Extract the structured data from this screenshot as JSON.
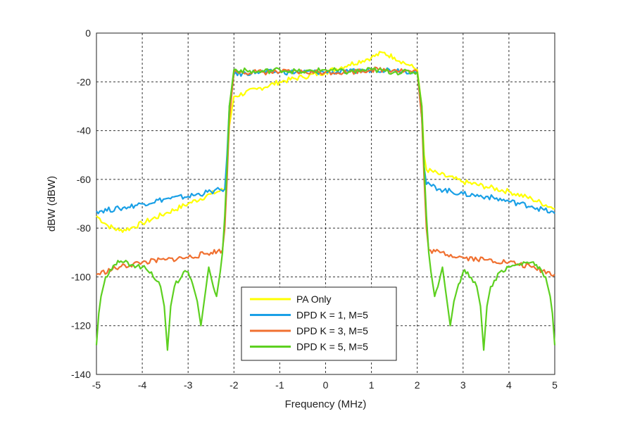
{
  "chart_data": {
    "type": "line",
    "title": "",
    "xlabel": "Frequency (MHz)",
    "ylabel": "dBW (dBW)",
    "xlim": [
      -5,
      5
    ],
    "ylim": [
      -140,
      0
    ],
    "xticks": [
      "-5",
      "-4",
      "-3",
      "-2",
      "-1",
      "0",
      "1",
      "2",
      "3",
      "4",
      "5"
    ],
    "yticks": [
      "0",
      "-20",
      "-40",
      "-60",
      "-80",
      "-100",
      "-120",
      "-140"
    ],
    "grid": true,
    "legend_position": "bottom-center",
    "series": [
      {
        "name": "PA Only",
        "color": "#ffff00",
        "x": [
          -5,
          -4.75,
          -4.5,
          -4.25,
          -4,
          -3.5,
          -3,
          -2.5,
          -2.2,
          -2.15,
          -2.1,
          -2.0,
          -1.5,
          -1.0,
          -0.5,
          0,
          0.5,
          1.0,
          1.25,
          1.5,
          1.8,
          2.0,
          2.1,
          2.15,
          2.2,
          2.5,
          3.0,
          3.5,
          4.0,
          4.5,
          5.0
        ],
        "y": [
          -75,
          -79,
          -81,
          -80,
          -78,
          -74,
          -70,
          -66,
          -64,
          -55,
          -38,
          -26,
          -23,
          -20,
          -18,
          -16,
          -13,
          -10,
          -8,
          -10,
          -13,
          -15,
          -30,
          -50,
          -56,
          -58,
          -61,
          -63,
          -65,
          -68,
          -72
        ]
      },
      {
        "name": "DPD K = 1, M=5",
        "color": "#1aa0e6",
        "x": [
          -5,
          -4.5,
          -4,
          -3.5,
          -3,
          -2.5,
          -2.2,
          -2.15,
          -2.1,
          -2.0,
          -1.5,
          -1.0,
          -0.5,
          0,
          0.5,
          1.0,
          1.5,
          2.0,
          2.1,
          2.15,
          2.2,
          2.5,
          3.0,
          3.5,
          4.0,
          4.5,
          5.0
        ],
        "y": [
          -73,
          -72,
          -70,
          -68,
          -67,
          -65,
          -64,
          -50,
          -30,
          -17,
          -16,
          -16,
          -16,
          -16,
          -16,
          -15,
          -15,
          -16,
          -35,
          -55,
          -62,
          -64,
          -66,
          -67,
          -69,
          -71,
          -74
        ]
      },
      {
        "name": "DPD K = 3, M=5",
        "color": "#f07030",
        "x": [
          -5,
          -4.5,
          -4,
          -3.5,
          -3,
          -2.5,
          -2.25,
          -2.2,
          -2.15,
          -2.1,
          -2.0,
          -1.5,
          -1.0,
          -0.5,
          0,
          0.5,
          1.0,
          1.5,
          2.0,
          2.1,
          2.15,
          2.2,
          2.25,
          2.5,
          3.0,
          3.5,
          4.0,
          4.5,
          5.0
        ],
        "y": [
          -99,
          -96,
          -94,
          -93,
          -92,
          -90,
          -89,
          -80,
          -60,
          -35,
          -16,
          -16,
          -16,
          -16,
          -16,
          -16,
          -15,
          -15,
          -16,
          -35,
          -60,
          -80,
          -89,
          -90,
          -92,
          -93,
          -94,
          -96,
          -99
        ]
      },
      {
        "name": "DPD K = 5, M=5",
        "color": "#5dd020",
        "x": [
          -5,
          -4.95,
          -4.9,
          -4.8,
          -4.7,
          -4.6,
          -4.5,
          -4.4,
          -4.2,
          -4.0,
          -3.8,
          -3.6,
          -3.52,
          -3.45,
          -3.38,
          -3.3,
          -3.1,
          -3.0,
          -2.9,
          -2.8,
          -2.72,
          -2.65,
          -2.55,
          -2.45,
          -2.38,
          -2.3,
          -2.25,
          -2.2,
          -2.15,
          -2.1,
          -2.0,
          -1.5,
          -1.0,
          -0.5,
          0,
          0.5,
          1.0,
          1.5,
          2.0,
          2.1,
          2.15,
          2.2,
          2.25,
          2.3,
          2.38,
          2.45,
          2.55,
          2.65,
          2.72,
          2.8,
          2.9,
          3.0,
          3.1,
          3.3,
          3.38,
          3.45,
          3.52,
          3.6,
          3.8,
          4.0,
          4.2,
          4.4,
          4.5,
          4.6,
          4.7,
          4.8,
          4.9,
          4.95,
          5.0
        ],
        "y": [
          -128,
          -115,
          -108,
          -100,
          -97,
          -95,
          -94,
          -94,
          -95,
          -96,
          -98,
          -104,
          -112,
          -130,
          -112,
          -104,
          -98,
          -98,
          -103,
          -110,
          -120,
          -110,
          -96,
          -104,
          -108,
          -98,
          -90,
          -75,
          -55,
          -30,
          -15,
          -16,
          -15,
          -16,
          -15,
          -16,
          -15,
          -16,
          -16,
          -30,
          -55,
          -75,
          -90,
          -98,
          -108,
          -104,
          -96,
          -110,
          -120,
          -110,
          -103,
          -98,
          -98,
          -104,
          -112,
          -130,
          -112,
          -104,
          -98,
          -96,
          -95,
          -94,
          -94,
          -95,
          -97,
          -100,
          -108,
          -115,
          -128
        ]
      }
    ]
  }
}
